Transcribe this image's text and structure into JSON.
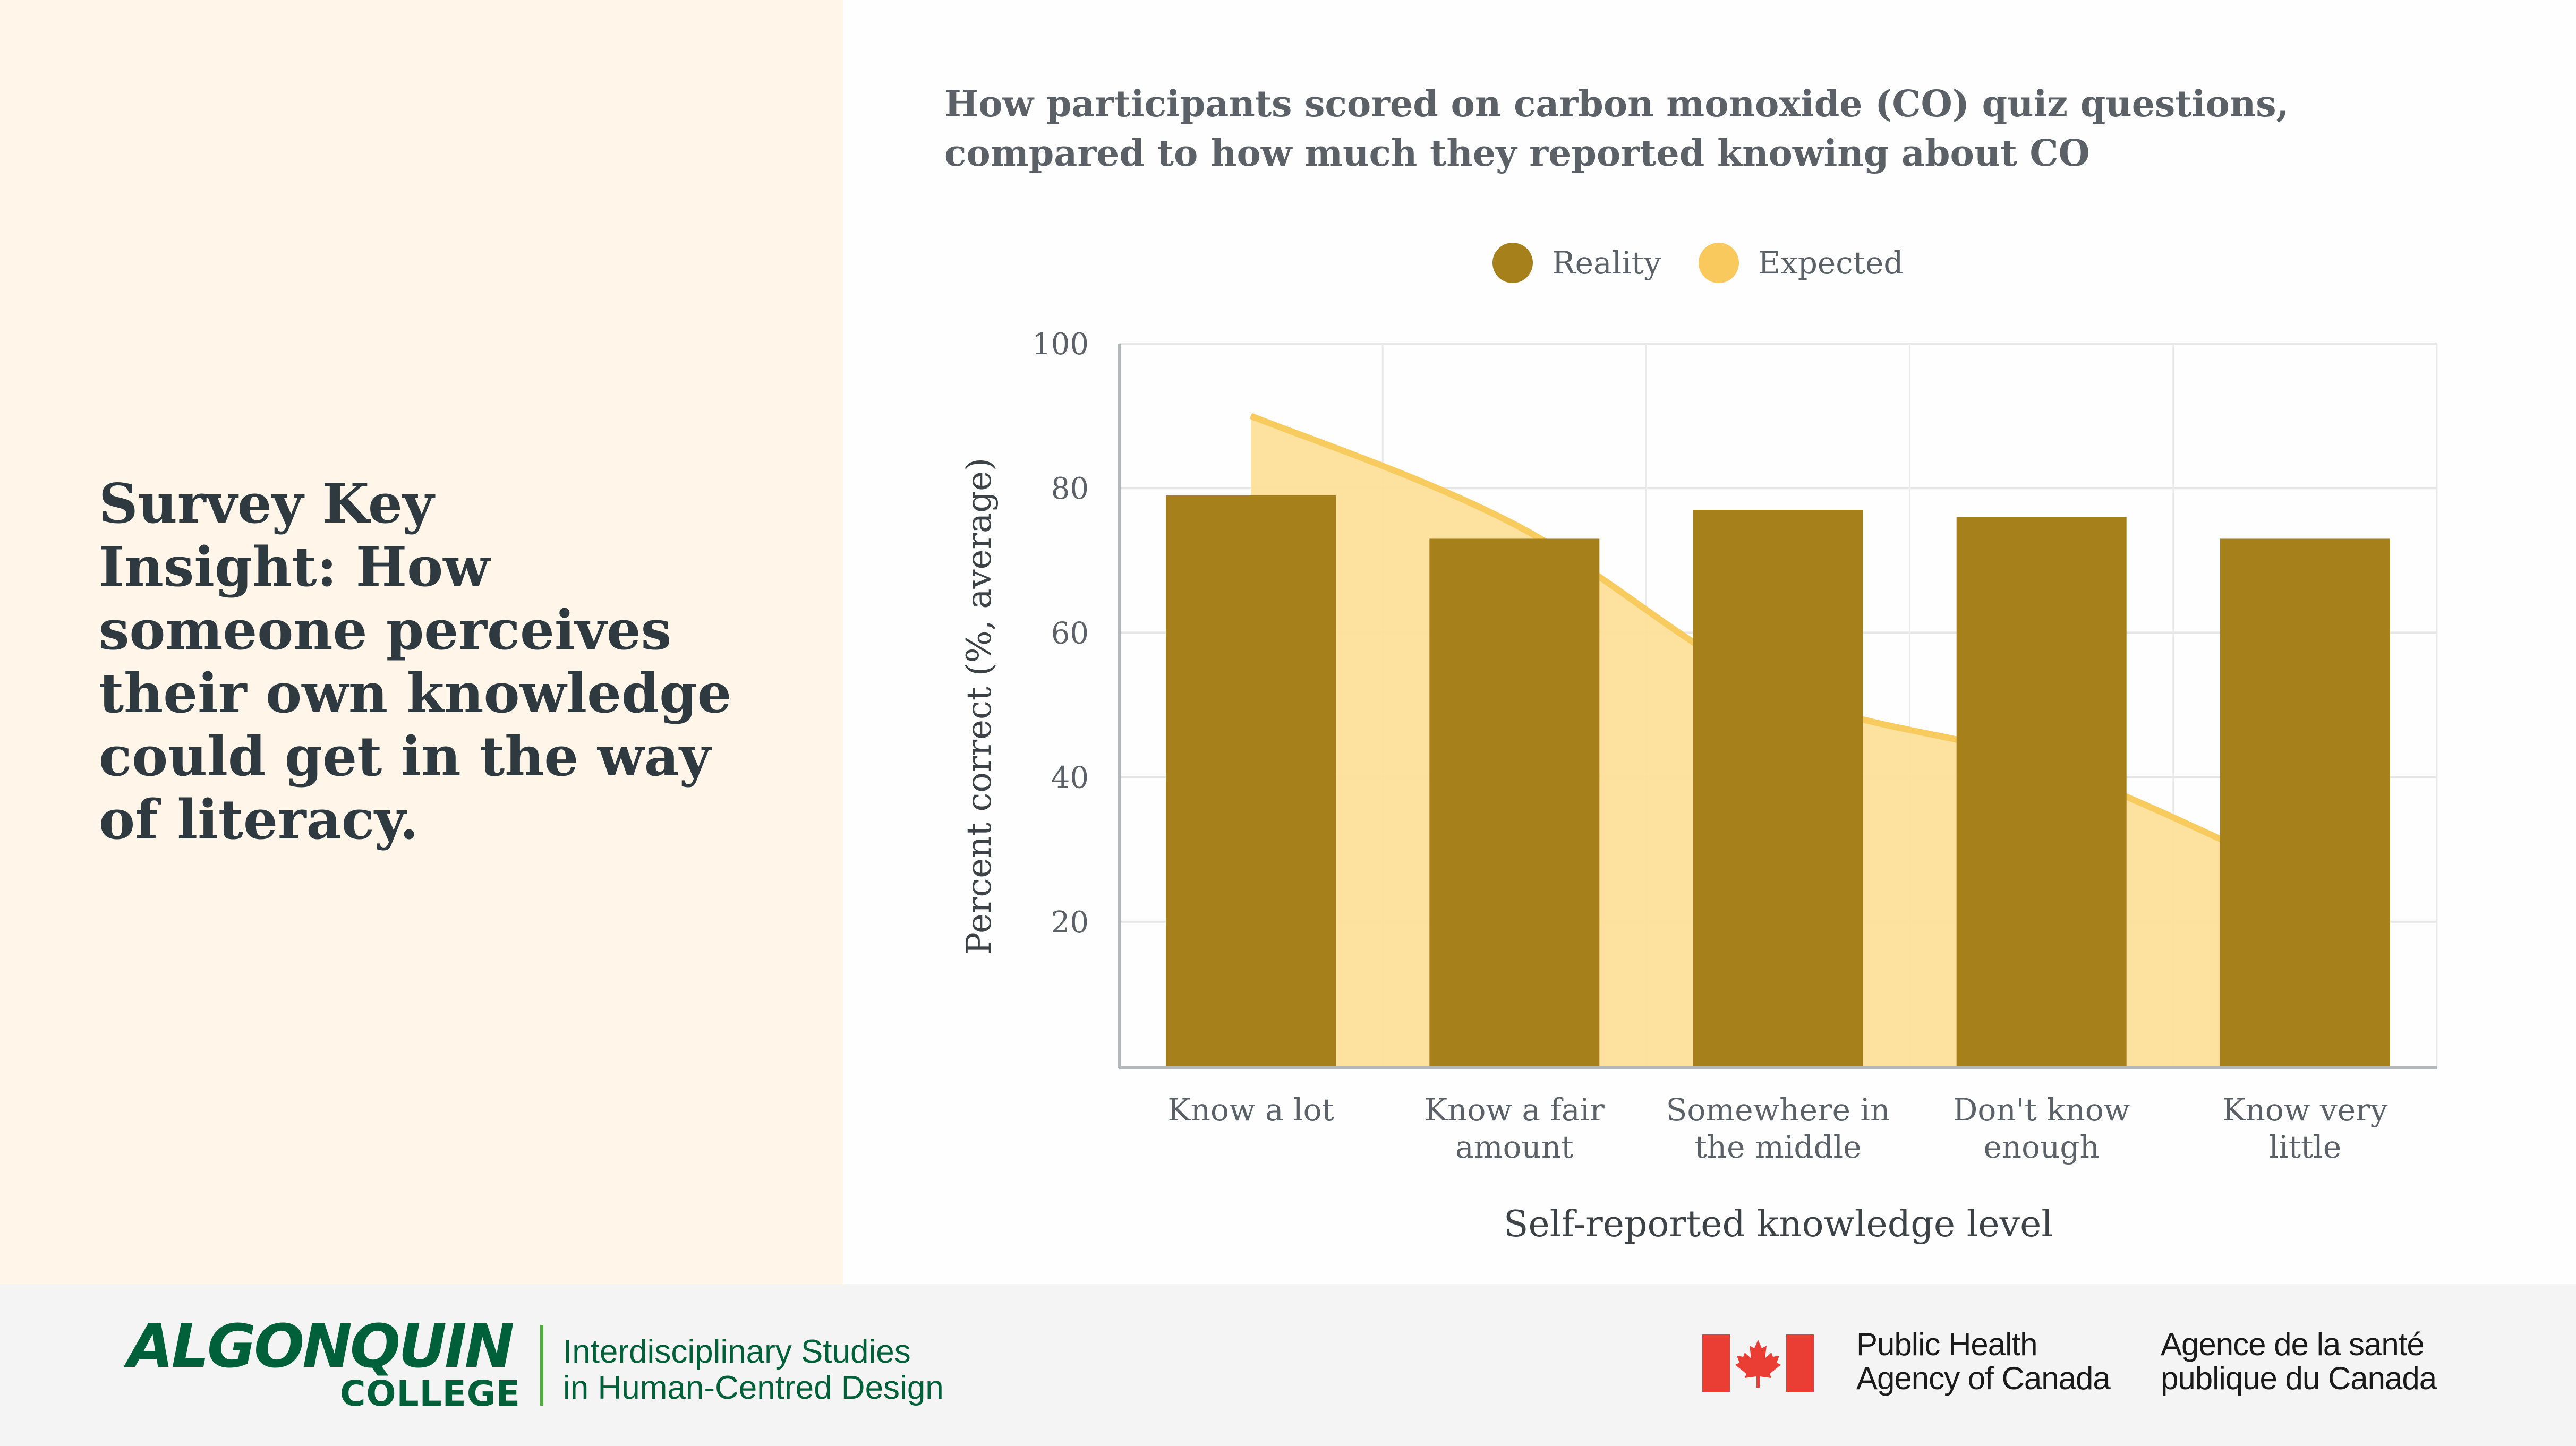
{
  "left_panel": {
    "heading_lines": [
      "Survey Key",
      "Insight: How",
      "someone perceives",
      "their own knowledge",
      "could get in the way",
      "of literacy."
    ]
  },
  "chart_data": {
    "type": "bar",
    "title_lines": [
      "How participants scored on carbon monoxide (CO) quiz questions,",
      "compared to how much they reported knowing about CO"
    ],
    "categories": [
      [
        "Know a lot"
      ],
      [
        "Know a fair",
        "amount"
      ],
      [
        "Somewhere in",
        "the middle"
      ],
      [
        "Don't know",
        "enough"
      ],
      [
        "Know very",
        "little"
      ]
    ],
    "series": [
      {
        "name": "Reality",
        "type": "bar",
        "color": "#a6801b",
        "values": [
          79,
          73,
          77,
          76,
          73
        ]
      },
      {
        "name": "Expected",
        "type": "area",
        "color": "#fddf9a",
        "line_color": "#f8cb5e",
        "legend_color": "#f9c95e",
        "values": [
          90,
          75,
          52,
          42,
          26
        ]
      }
    ],
    "xlabel": "Self-reported knowledge level",
    "ylabel": "Percent correct (%, average)",
    "ylim": [
      0,
      100
    ],
    "yticks": [
      "100",
      "80",
      "60",
      "40",
      "20"
    ],
    "ytick_values": [
      100,
      80,
      60,
      40,
      20
    ],
    "grid": true,
    "legend_position": "top-center"
  },
  "footer": {
    "algonquin": {
      "wordmark": "ALGONQUIN",
      "college": "COLLEGE",
      "program_lines": [
        "Interdisciplinary Studies",
        "in Human-Centred Design"
      ]
    },
    "phac": {
      "en_lines": [
        "Public Health",
        "Agency of Canada"
      ],
      "fr_lines": [
        "Agence de la santé",
        "publique du Canada"
      ],
      "flag_color": "#ea3d34"
    }
  }
}
